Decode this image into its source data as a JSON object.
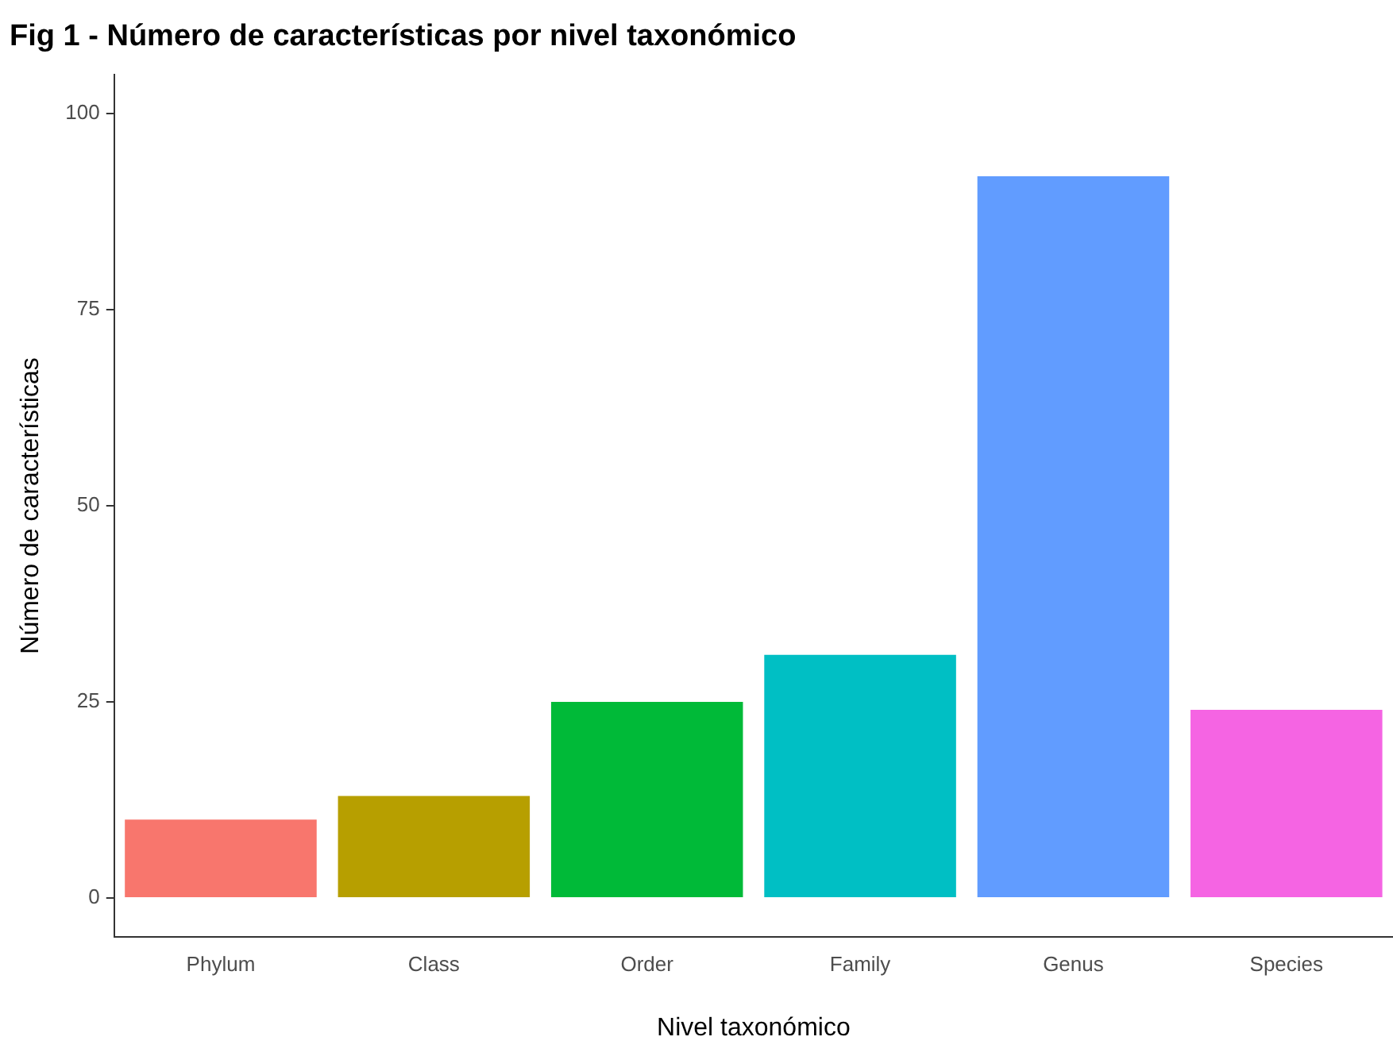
{
  "chart_data": {
    "type": "bar",
    "title": "Fig 1 - Número de características por nivel taxonómico",
    "xlabel": "Nivel taxonómico",
    "ylabel": "Número de características",
    "categories": [
      "Phylum",
      "Class",
      "Order",
      "Family",
      "Genus",
      "Species"
    ],
    "values": [
      10,
      13,
      25,
      31,
      92,
      24
    ],
    "colors": [
      "#f8766d",
      "#b79f00",
      "#00ba38",
      "#00bfc4",
      "#619cff",
      "#f564e3"
    ],
    "ylim": [
      -5,
      105
    ],
    "yticks": [
      0,
      25,
      50,
      75,
      100
    ],
    "grid": false,
    "legend": false
  }
}
